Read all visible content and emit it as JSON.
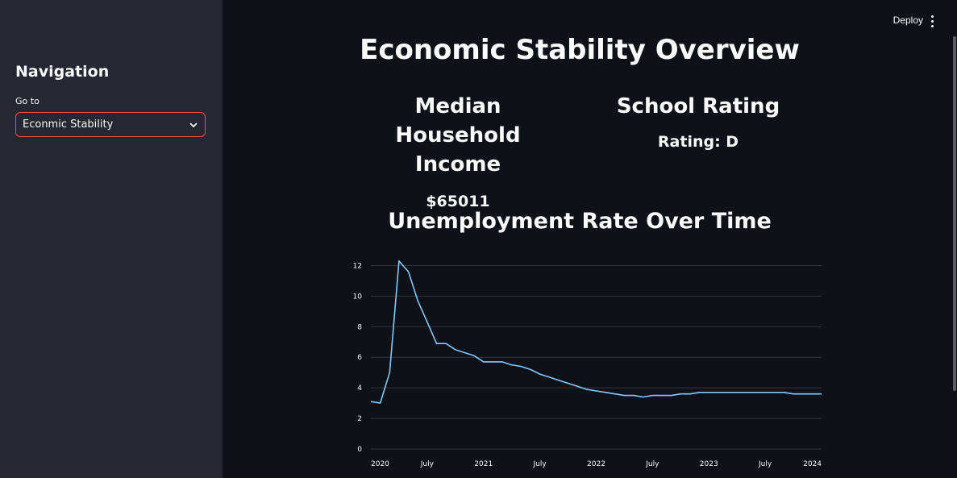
{
  "sidebar": {
    "title": "Navigation",
    "select_label": "Go to",
    "select_value": "Econmic Stability"
  },
  "header": {
    "deploy_label": "Deploy",
    "menu_icon": "vertical-ellipsis-icon"
  },
  "main": {
    "title": "Economic Stability Overview",
    "income": {
      "heading": "Median Household Income",
      "value": "$65011"
    },
    "school": {
      "heading": "School Rating",
      "value": "Rating: D"
    }
  },
  "colors": {
    "background": "#0e1117",
    "sidebar": "#262730",
    "accent": "#ff4b4b",
    "line": "#83c9ff",
    "grid": "#31333f"
  },
  "chart_data": {
    "type": "line",
    "title": "Unemployment Rate Over Time",
    "xlabel": "",
    "ylabel": "",
    "x": [
      "2020-01",
      "2020-02",
      "2020-03",
      "2020-04",
      "2020-05",
      "2020-06",
      "2020-07",
      "2020-08",
      "2020-09",
      "2020-10",
      "2020-11",
      "2020-12",
      "2021-01",
      "2021-02",
      "2021-03",
      "2021-04",
      "2021-05",
      "2021-06",
      "2021-07",
      "2021-08",
      "2021-09",
      "2021-10",
      "2021-11",
      "2021-12",
      "2022-01",
      "2022-02",
      "2022-03",
      "2022-04",
      "2022-05",
      "2022-06",
      "2022-07",
      "2022-08",
      "2022-09",
      "2022-10",
      "2022-11",
      "2022-12",
      "2023-01",
      "2023-02",
      "2023-03",
      "2023-04",
      "2023-05",
      "2023-06",
      "2023-07",
      "2023-08",
      "2023-09",
      "2023-10",
      "2023-11",
      "2023-12",
      "2024-01"
    ],
    "series": [
      {
        "values": [
          3.1,
          3.0,
          5.0,
          12.3,
          11.6,
          9.7,
          8.3,
          6.9,
          6.9,
          6.5,
          6.3,
          6.1,
          5.7,
          5.7,
          5.7,
          5.5,
          5.4,
          5.2,
          4.9,
          4.7,
          4.5,
          4.3,
          4.1,
          3.9,
          3.8,
          3.7,
          3.6,
          3.5,
          3.5,
          3.4,
          3.5,
          3.5,
          3.5,
          3.6,
          3.6,
          3.7,
          3.7,
          3.7,
          3.7,
          3.7,
          3.7,
          3.7,
          3.7,
          3.7,
          3.7,
          3.6,
          3.6,
          3.6,
          3.6
        ]
      }
    ],
    "ylim": [
      0,
      12.5
    ],
    "yticks": [
      "0",
      "2",
      "4",
      "6",
      "8",
      "10",
      "12"
    ],
    "xticks": [
      "2020",
      "July",
      "2021",
      "July",
      "2022",
      "July",
      "2023",
      "July",
      "2024"
    ],
    "grid": true
  }
}
